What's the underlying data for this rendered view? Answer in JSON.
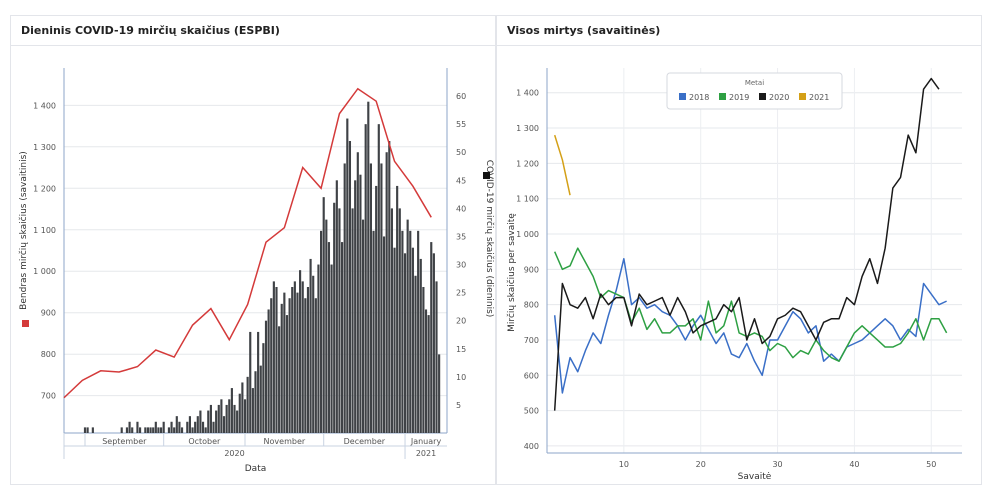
{
  "chart_data": [
    {
      "type": "bar+line",
      "title": "Dieninis COVID-19 mirčių skaičius (ESPBI)",
      "xlabel": "Data",
      "ylabel_left": "Bendras mirčių skaičius (savaitinis)",
      "ylabel_right": "COVID-19 mirčių skaičius (dieninis)",
      "x_month_labels": [
        "September",
        "October",
        "November",
        "December",
        "January"
      ],
      "x_year_labels": [
        "2020",
        "2021"
      ],
      "ylim_left": [
        610,
        1490
      ],
      "yticks_left": [
        "700",
        "800",
        "900",
        "1 000",
        "1 100",
        "1 200",
        "1 300",
        "1 400"
      ],
      "ylim_right": [
        0,
        65
      ],
      "yticks_right": [
        "5",
        "10",
        "15",
        "20",
        "25",
        "30",
        "35",
        "40",
        "45",
        "50",
        "55",
        "60"
      ],
      "legend_left": "Bendras mirčių skaičius (savaitinis)",
      "legend_right": "COVID-19 mirčių skaičius (dieninis)",
      "colors": {
        "line": "#d43a3a",
        "bars": "#3f4246"
      },
      "weekly_total_deaths": [
        {
          "date": "2020-08-24",
          "value": 695
        },
        {
          "date": "2020-08-31",
          "value": 737
        },
        {
          "date": "2020-09-07",
          "value": 760
        },
        {
          "date": "2020-09-14",
          "value": 757
        },
        {
          "date": "2020-09-21",
          "value": 770
        },
        {
          "date": "2020-09-28",
          "value": 810
        },
        {
          "date": "2020-10-05",
          "value": 793
        },
        {
          "date": "2020-10-12",
          "value": 870
        },
        {
          "date": "2020-10-19",
          "value": 910
        },
        {
          "date": "2020-10-26",
          "value": 835
        },
        {
          "date": "2020-11-02",
          "value": 920
        },
        {
          "date": "2020-11-09",
          "value": 1070
        },
        {
          "date": "2020-11-16",
          "value": 1105
        },
        {
          "date": "2020-11-23",
          "value": 1250
        },
        {
          "date": "2020-11-30",
          "value": 1200
        },
        {
          "date": "2020-12-07",
          "value": 1380
        },
        {
          "date": "2020-12-14",
          "value": 1440
        },
        {
          "date": "2020-12-21",
          "value": 1410
        },
        {
          "date": "2020-12-28",
          "value": 1265
        },
        {
          "date": "2021-01-04",
          "value": 1205
        },
        {
          "date": "2021-01-11",
          "value": 1130
        }
      ],
      "daily_covid_deaths_start": "2020-08-27",
      "daily_covid_deaths": [
        0,
        0,
        0,
        0,
        0,
        1,
        1,
        0,
        1,
        0,
        0,
        0,
        0,
        0,
        0,
        0,
        0,
        0,
        0,
        1,
        0,
        1,
        2,
        1,
        0,
        2,
        1,
        0,
        1,
        1,
        1,
        1,
        2,
        1,
        1,
        2,
        0,
        1,
        2,
        1,
        3,
        2,
        1,
        0,
        2,
        3,
        1,
        2,
        3,
        4,
        2,
        1,
        4,
        5,
        2,
        4,
        5,
        6,
        3,
        5,
        6,
        8,
        5,
        4,
        7,
        9,
        6,
        10,
        18,
        8,
        11,
        18,
        12,
        16,
        20,
        22,
        24,
        27,
        26,
        19,
        23,
        25,
        21,
        24,
        26,
        27,
        25,
        29,
        27,
        24,
        26,
        31,
        28,
        24,
        30,
        36,
        42,
        38,
        34,
        30,
        41,
        45,
        40,
        34,
        48,
        56,
        52,
        40,
        45,
        50,
        46,
        38,
        55,
        59,
        48,
        36,
        44,
        55,
        48,
        35,
        50,
        52,
        40,
        33,
        44,
        40,
        36,
        32,
        38,
        36,
        33,
        28,
        36,
        31,
        26,
        22,
        21,
        34,
        32,
        27,
        14
      ]
    },
    {
      "type": "line",
      "title": "Visos mirtys (savaitinės)",
      "xlabel": "Savaitė",
      "ylabel": "Mirčių skaičius per savaitę",
      "xlim": [
        0,
        54
      ],
      "xticks": [
        "10",
        "20",
        "30",
        "40",
        "50"
      ],
      "ylim": [
        380,
        1470
      ],
      "yticks": [
        "400",
        "500",
        "600",
        "700",
        "800",
        "900",
        "1 000",
        "1 100",
        "1 200",
        "1 300",
        "1 400"
      ],
      "legend_title": "Metai",
      "legend_position": "top-center",
      "series": [
        {
          "name": "2018",
          "color": "#3a6fc7",
          "x_start": 1,
          "values": [
            770,
            550,
            650,
            610,
            670,
            720,
            690,
            770,
            840,
            930,
            800,
            820,
            790,
            800,
            780,
            770,
            740,
            700,
            740,
            770,
            730,
            690,
            720,
            660,
            650,
            690,
            640,
            600,
            700,
            700,
            740,
            780,
            760,
            720,
            740,
            640,
            660,
            640,
            680,
            690,
            700,
            720,
            740,
            760,
            740,
            700,
            730,
            710,
            860,
            830,
            800,
            810
          ]
        },
        {
          "name": "2019",
          "color": "#2ea043",
          "x_start": 1,
          "values": [
            950,
            900,
            910,
            960,
            920,
            880,
            820,
            840,
            830,
            820,
            750,
            790,
            730,
            760,
            720,
            720,
            740,
            740,
            760,
            700,
            810,
            720,
            740,
            810,
            720,
            710,
            720,
            710,
            670,
            690,
            680,
            650,
            670,
            660,
            700,
            670,
            650,
            640,
            680,
            720,
            740,
            720,
            700,
            680,
            680,
            690,
            720,
            760,
            700,
            760,
            760,
            720
          ]
        },
        {
          "name": "2020",
          "color": "#1a1a1a",
          "x_start": 1,
          "values": [
            500,
            860,
            800,
            790,
            820,
            760,
            830,
            800,
            820,
            820,
            740,
            830,
            800,
            810,
            820,
            770,
            820,
            780,
            720,
            740,
            750,
            760,
            800,
            780,
            820,
            700,
            760,
            690,
            710,
            760,
            770,
            790,
            780,
            740,
            700,
            750,
            760,
            760,
            820,
            800,
            880,
            930,
            860,
            960,
            1130,
            1160,
            1280,
            1230,
            1410,
            1440,
            1410
          ]
        },
        {
          "name": "2021",
          "color": "#d4a017",
          "x_start": 1,
          "values": [
            1280,
            1210,
            1110
          ]
        }
      ]
    }
  ]
}
